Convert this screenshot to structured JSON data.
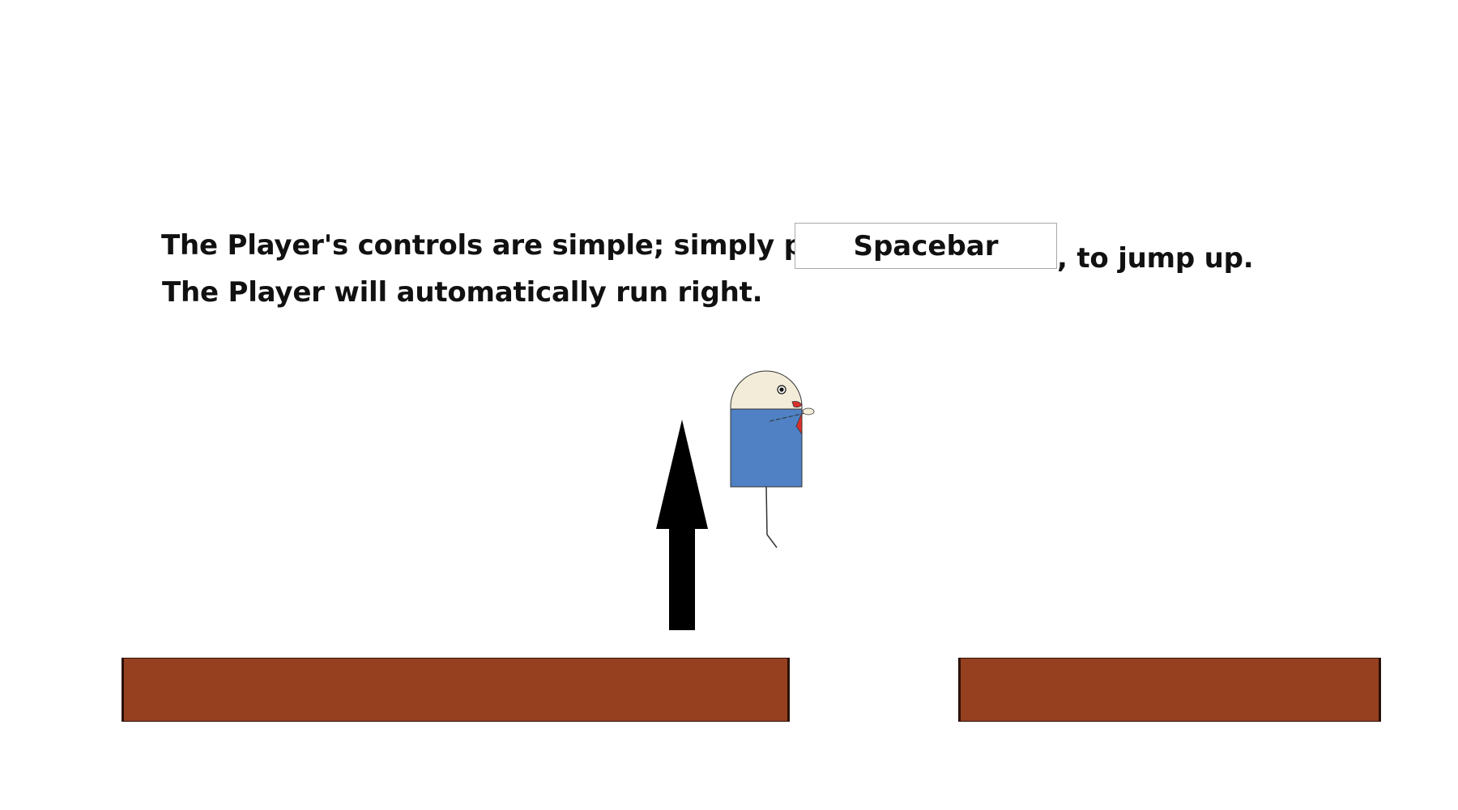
{
  "instructions": {
    "line1_prefix": "The Player's controls are simple; simply press",
    "key_label": "Spacebar",
    "line1_suffix": ", to jump up.",
    "line2": "The Player will automatically run right."
  },
  "colors": {
    "background": "#ffffff",
    "platform_fill": "#96401f",
    "platform_border": "#2a1208",
    "arrow": "#000000",
    "player_head": "#f3ecd9",
    "player_body": "#4f81c4",
    "player_tie": "#d9302b"
  },
  "icons": {
    "arrow": "up-arrow-icon",
    "player": "player-character"
  }
}
